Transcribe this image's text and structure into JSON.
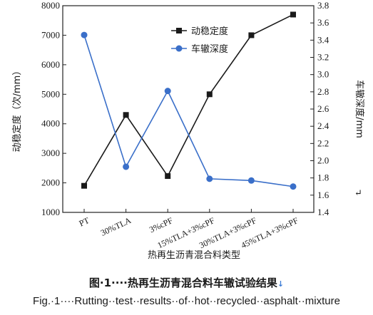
{
  "chart_data": {
    "type": "line",
    "categories": [
      "PT",
      "30%TLA",
      "3%cPF",
      "15%TLA+3%cPF",
      "30%TLA+3%cPF",
      "45%TLA+3%cPF"
    ],
    "xlabel": "热再生沥青混合料类型",
    "y_left": {
      "label": "动稳定度（次/mm）",
      "range": [
        1000,
        8000
      ],
      "ticks": [
        1000,
        2000,
        3000,
        4000,
        5000,
        6000,
        7000,
        8000
      ]
    },
    "y_right": {
      "label": "车辙深度/mm",
      "range": [
        1.4,
        3.8
      ],
      "ticks": [
        "1.4",
        "1.6",
        "1.8",
        "2.0",
        "2.2",
        "2.4",
        "2.6",
        "2.8",
        "3.0",
        "3.2",
        "3.4",
        "3.6",
        "3.8"
      ]
    },
    "series": [
      {
        "name": "动稳定度",
        "axis": "left",
        "marker": "square",
        "color": "#1a1a1a",
        "values": [
          1900,
          4300,
          2230,
          5000,
          7000,
          7700
        ]
      },
      {
        "name": "车辙深度",
        "axis": "right",
        "marker": "circle",
        "color": "#3a6fc9",
        "values": [
          3.46,
          1.93,
          2.81,
          1.79,
          1.77,
          1.7
        ]
      }
    ],
    "legend_position": "top-right"
  },
  "caption": {
    "cn": "图·1····热再生沥青混合料车辙试验结果",
    "en": "Fig.·1····Rutting··test··results··of··hot··recycled··asphalt··mixture"
  },
  "marks": {
    "cn_end": "↓",
    "en_end": "↵",
    "chart_end": "↵"
  }
}
